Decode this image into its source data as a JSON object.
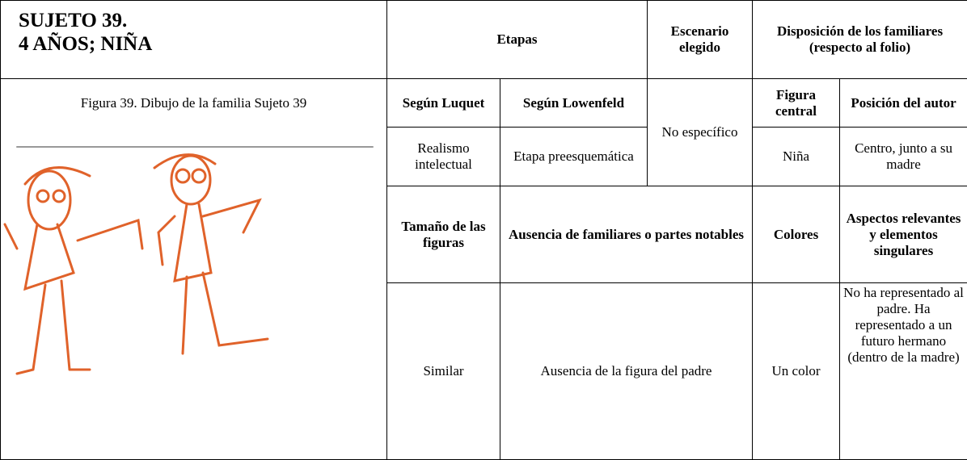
{
  "header": {
    "title": [
      "SUJETO 39.",
      "4 AÑOS; NIÑA"
    ]
  },
  "figure_caption": "Figura 39. Dibujo de la familia Sujeto 39",
  "table": {
    "head": {
      "etapas": "Etapas",
      "escenario": "Escenario elegido",
      "disposicion": "Disposición de los familiares (respecto al folio)"
    },
    "subhead": {
      "luquet": "Según Luquet",
      "lowenfeld": "Según Lowenfeld",
      "figura_central": "Figura central",
      "posicion": "Posición del autor"
    },
    "row1": {
      "luquet": "Realismo intelectual",
      "lowenfeld": "Etapa preesquemática",
      "escenario": "No específico",
      "figura_central": "Niña",
      "posicion": "Centro, junto a su madre"
    },
    "head2": {
      "tamano": "Tamaño de las figuras",
      "ausencia": "Ausencia de familiares o partes notables",
      "colores": "Colores",
      "aspectos": "Aspectos relevantes y elementos singulares"
    },
    "row2": {
      "tamano": "Similar",
      "ausencia": "Ausencia de la figura del padre",
      "colores": "Un color",
      "aspectos": "No ha representado al padre. Ha representado a un futuro hermano (dentro de la madre)"
    }
  }
}
